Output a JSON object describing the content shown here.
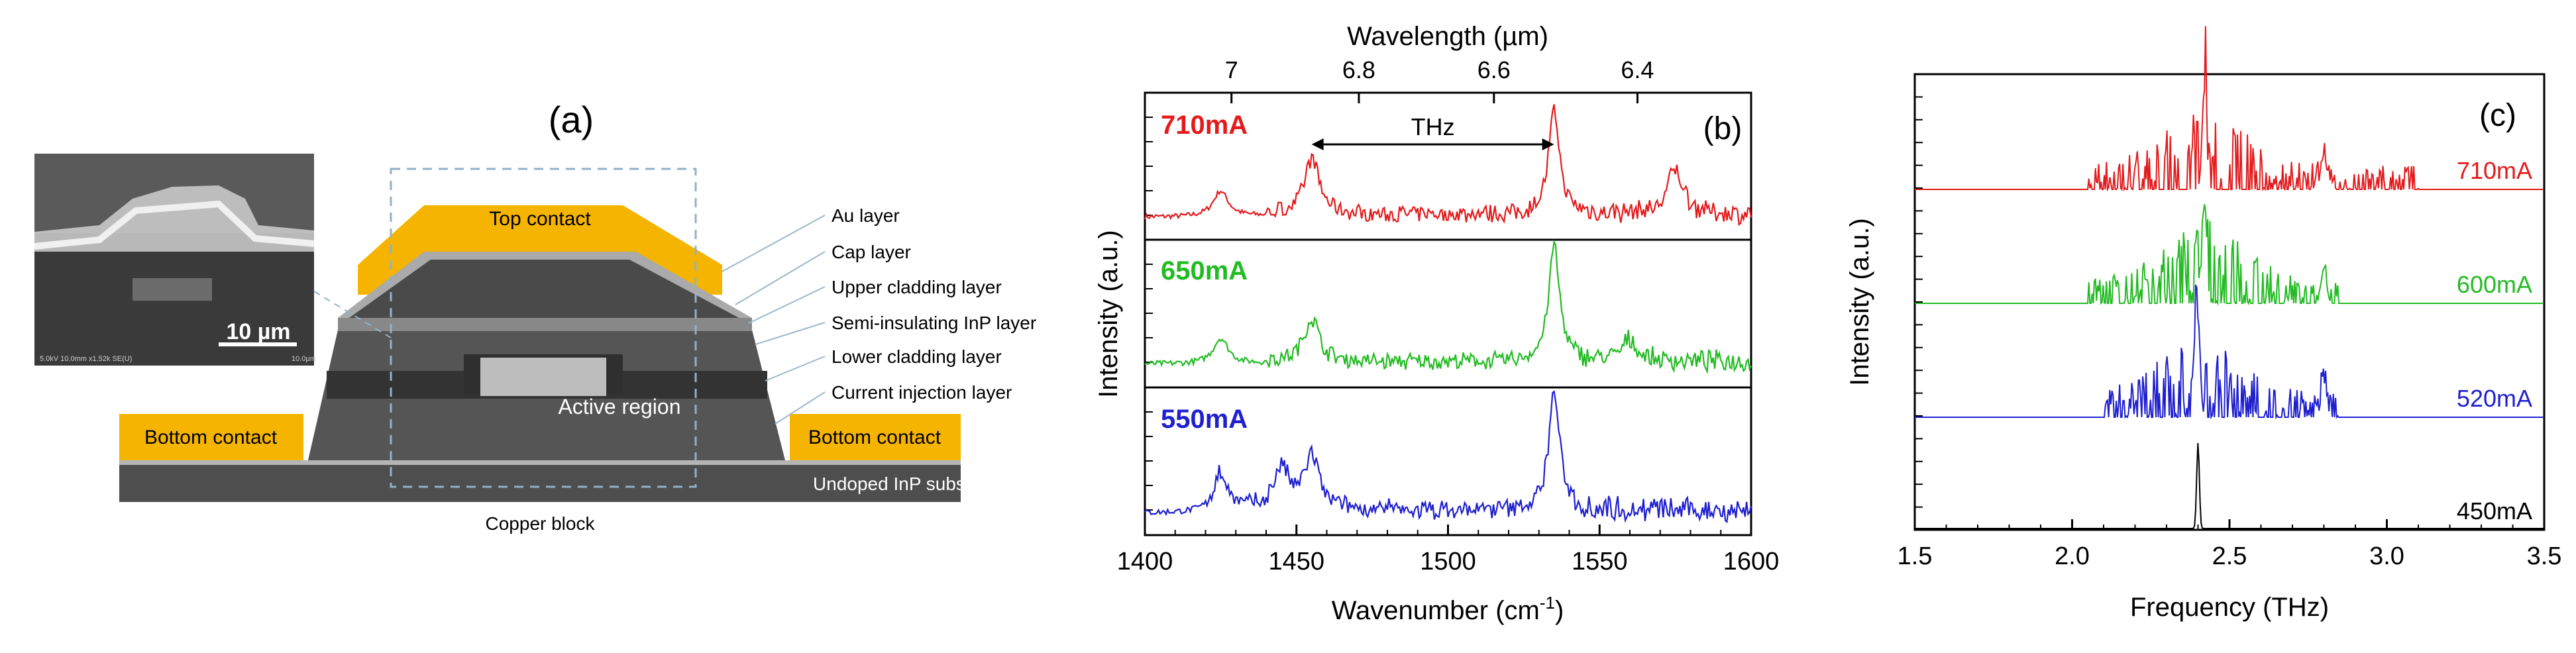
{
  "panel_a": {
    "label": "(a)",
    "sem_scale": "10 µm",
    "sem_footer_left": "5.0kV 10.0mm x1.52k SE(U)",
    "sem_footer_right": "10.0µm",
    "top_contact": "Top contact",
    "bottom_contact_left": "Bottom contact",
    "bottom_contact_right": "Bottom contact",
    "active_region": "Active region",
    "substrate": "Undoped InP substrate",
    "copper_block": "Copper block",
    "layers": [
      "Au layer",
      "Cap layer",
      "Upper cladding layer",
      "Semi-insulating InP layer",
      "Lower cladding layer",
      "Current injection layer"
    ],
    "colors": {
      "gold": "#f5b400",
      "dark": "#4a4a4a",
      "mid": "#6a6a6a",
      "light": "#b5b5b5",
      "dashed": "#8fb2c9"
    }
  },
  "chart_data": [
    {
      "type": "line",
      "panel_label": "(b)",
      "xlabel": "Wavenumber (cm",
      "xlabel_sup": "-1",
      "xlabel_close": ")",
      "ylabel": "Intensity (a.u.)",
      "top_axis_label": "Wavelength (µm)",
      "xlim": [
        1400,
        1600
      ],
      "x_ticks": [
        1400,
        1450,
        1500,
        1550,
        1600
      ],
      "x_tick_labels": [
        "1400",
        "1450",
        "1500",
        "1550",
        "1600"
      ],
      "top_ticks_um": [
        7,
        6.8,
        6.6,
        6.4
      ],
      "top_tick_labels": [
        "7",
        "6.8",
        "6.6",
        "6.4"
      ],
      "annotation": {
        "text": "THz",
        "from_x": 1455,
        "to_x": 1535
      },
      "series": [
        {
          "name": "710mA",
          "color": "#e41a1c",
          "peaks": [
            [
              1425,
              0.25
            ],
            [
              1455,
              0.55
            ],
            [
              1535,
              1.0
            ],
            [
              1575,
              0.45
            ]
          ],
          "noise": 0.14,
          "noise_from": 1440
        },
        {
          "name": "650mA",
          "color": "#22bb22",
          "peaks": [
            [
              1425,
              0.22
            ],
            [
              1455,
              0.38
            ],
            [
              1535,
              1.0
            ],
            [
              1560,
              0.18
            ]
          ],
          "noise": 0.12,
          "noise_from": 1440
        },
        {
          "name": "550mA",
          "color": "#1f1fd0",
          "peaks": [
            [
              1425,
              0.3
            ],
            [
              1445,
              0.35
            ],
            [
              1455,
              0.45
            ],
            [
              1535,
              1.0
            ]
          ],
          "noise": 0.14,
          "noise_from": 1420
        }
      ]
    },
    {
      "type": "line",
      "panel_label": "(c)",
      "xlabel": "Frequency (THz)",
      "ylabel": "Intensity (a.u.)",
      "xlim": [
        1.5,
        3.5
      ],
      "x_ticks": [
        1.5,
        2.0,
        2.5,
        3.0,
        3.5
      ],
      "x_tick_labels": [
        "1.5",
        "2.0",
        "2.5",
        "3.0",
        "3.5"
      ],
      "series": [
        {
          "name": "710mA",
          "color": "#e41a1c",
          "band": [
            2.05,
            3.1
          ],
          "main_peak": 2.42
        },
        {
          "name": "600mA",
          "color": "#22bb22",
          "band": [
            2.05,
            2.85
          ],
          "main_peak": 2.42
        },
        {
          "name": "520mA",
          "color": "#1f1fd0",
          "band": [
            2.1,
            2.85
          ],
          "main_peak": 2.4
        },
        {
          "name": "450mA",
          "color": "#000000",
          "band": [
            2.39,
            2.41
          ],
          "main_peak": 2.4
        }
      ]
    }
  ]
}
